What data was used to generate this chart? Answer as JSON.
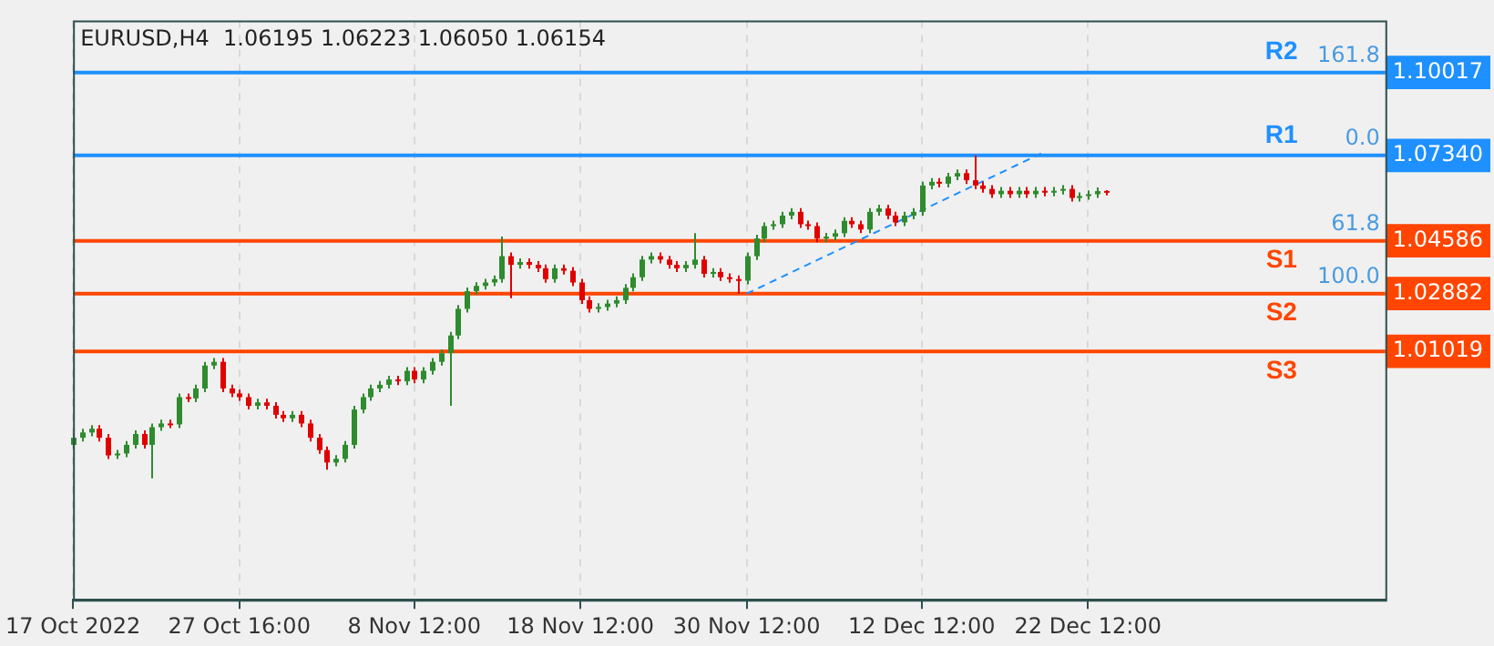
{
  "chart_data": {
    "type": "candlestick",
    "title": "EURUSD,H4  1.06195 1.06223 1.06050 1.06154",
    "categories": [
      "17 Oct 2022",
      null,
      null,
      null,
      null,
      null,
      null,
      null,
      null,
      null,
      null,
      null,
      null,
      null,
      null,
      null,
      null,
      null,
      null,
      "27 Oct 16:00",
      null,
      null,
      null,
      null,
      null,
      null,
      null,
      null,
      null,
      null,
      null,
      null,
      null,
      null,
      null,
      null,
      null,
      null,
      null,
      "8 Nov 12:00",
      null,
      null,
      null,
      null,
      null,
      null,
      null,
      null,
      null,
      null,
      null,
      null,
      null,
      null,
      null,
      null,
      null,
      null,
      "18 Nov 12:00",
      null,
      null,
      null,
      null,
      null,
      null,
      null,
      null,
      null,
      null,
      null,
      null,
      null,
      null,
      null,
      null,
      null,
      null,
      "30 Nov 12:00",
      null,
      null,
      null,
      null,
      null,
      null,
      null,
      null,
      null,
      null,
      null,
      null,
      null,
      null,
      null,
      null,
      null,
      null,
      null,
      "12 Dec 12:00",
      null,
      null,
      null,
      null,
      null,
      null,
      null,
      null,
      null,
      null,
      null,
      null,
      null,
      null,
      null,
      null,
      null,
      null,
      "22 Dec 12:00",
      null,
      null,
      null,
      null,
      null,
      null,
      null,
      null,
      null,
      null,
      null,
      null,
      null,
      null,
      null,
      null,
      null,
      null,
      null,
      null,
      null,
      null,
      null,
      null,
      null,
      null,
      null,
      null,
      null,
      null,
      null,
      null,
      null,
      null
    ],
    "ohlc": [
      [
        0.98,
        0.9835,
        0.9788,
        0.9823
      ],
      [
        0.9823,
        0.9852,
        0.9811,
        0.984
      ],
      [
        0.984,
        0.9864,
        0.9828,
        0.9852
      ],
      [
        0.9852,
        0.9864,
        0.9811,
        0.9823
      ],
      [
        0.9823,
        0.9835,
        0.9754,
        0.9766
      ],
      [
        0.9766,
        0.9784,
        0.9754,
        0.9772
      ],
      [
        0.9772,
        0.9812,
        0.976,
        0.98
      ],
      [
        0.98,
        0.9847,
        0.9788,
        0.9835
      ],
      [
        0.9835,
        0.9847,
        0.9788,
        0.98
      ],
      [
        0.98,
        0.9869,
        0.9692,
        0.9857
      ],
      [
        0.9857,
        0.9881,
        0.9845,
        0.9869
      ],
      [
        0.9869,
        0.9881,
        0.9854,
        0.9866
      ],
      [
        0.9866,
        0.9966,
        0.9854,
        0.9954
      ],
      [
        0.9954,
        0.9966,
        0.9938,
        0.995
      ],
      [
        0.995,
        0.9994,
        0.9938,
        0.9982
      ],
      [
        0.9982,
        1.0068,
        0.997,
        1.0056
      ],
      [
        1.0056,
        1.008,
        1.0044,
        1.0068
      ],
      [
        1.0068,
        1.008,
        0.997,
        0.9982
      ],
      [
        0.9982,
        0.9994,
        0.9954,
        0.9966
      ],
      [
        0.9966,
        0.9978,
        0.9942,
        0.9954
      ],
      [
        0.9954,
        0.9966,
        0.9914,
        0.9926
      ],
      [
        0.9926,
        0.9949,
        0.9914,
        0.9937
      ],
      [
        0.9937,
        0.9949,
        0.9914,
        0.9926
      ],
      [
        0.9926,
        0.9938,
        0.9885,
        0.9897
      ],
      [
        0.9897,
        0.9909,
        0.9874,
        0.9886
      ],
      [
        0.9886,
        0.9909,
        0.9874,
        0.9897
      ],
      [
        0.9897,
        0.9909,
        0.9857,
        0.9869
      ],
      [
        0.9869,
        0.9881,
        0.9811,
        0.9823
      ],
      [
        0.9823,
        0.9835,
        0.9771,
        0.9783
      ],
      [
        0.9783,
        0.9795,
        0.972,
        0.9743
      ],
      [
        0.9743,
        0.9767,
        0.9731,
        0.9755
      ],
      [
        0.9755,
        0.9812,
        0.9743,
        0.98
      ],
      [
        0.98,
        0.9926,
        0.9788,
        0.9914
      ],
      [
        0.9914,
        0.9966,
        0.9902,
        0.9954
      ],
      [
        0.9954,
        0.9994,
        0.9942,
        0.9982
      ],
      [
        0.9982,
        1.0006,
        0.997,
        0.9994
      ],
      [
        0.9994,
        1.0023,
        0.9982,
        1.0011
      ],
      [
        1.0011,
        1.0023,
        0.9993,
        1.0005
      ],
      [
        1.0005,
        1.0051,
        0.9993,
        1.0039
      ],
      [
        1.0039,
        1.0051,
        0.9999,
        1.0011
      ],
      [
        1.0011,
        1.0051,
        0.9999,
        1.0039
      ],
      [
        1.0039,
        1.008,
        1.0027,
        1.0068
      ],
      [
        1.0068,
        1.0108,
        1.0056,
        1.0096
      ],
      [
        1.0096,
        1.0165,
        0.9926,
        1.0153
      ],
      [
        1.0153,
        1.0251,
        1.0141,
        1.0239
      ],
      [
        1.0239,
        1.0308,
        1.0227,
        1.0296
      ],
      [
        1.0296,
        1.0325,
        1.0284,
        1.0313
      ],
      [
        1.0313,
        1.0336,
        1.0301,
        1.0324
      ],
      [
        1.0324,
        1.0347,
        1.0312,
        1.0335
      ],
      [
        1.0335,
        1.0472,
        1.0323,
        1.0409
      ],
      [
        1.0409,
        1.0421,
        1.0273,
        1.0381
      ],
      [
        1.0381,
        1.0402,
        1.0369,
        1.039
      ],
      [
        1.039,
        1.0402,
        1.0369,
        1.0381
      ],
      [
        1.0381,
        1.0393,
        1.0358,
        1.037
      ],
      [
        1.037,
        1.0382,
        1.0323,
        1.0335
      ],
      [
        1.0335,
        1.0382,
        1.0323,
        1.037
      ],
      [
        1.037,
        1.0382,
        1.035,
        1.0362
      ],
      [
        1.0362,
        1.0374,
        1.0312,
        1.0324
      ],
      [
        1.0324,
        1.0336,
        1.0255,
        1.0267
      ],
      [
        1.0267,
        1.0279,
        1.0227,
        1.0239
      ],
      [
        1.0239,
        1.0257,
        1.0227,
        1.0245
      ],
      [
        1.0245,
        1.0268,
        1.0233,
        1.0256
      ],
      [
        1.0256,
        1.0279,
        1.0244,
        1.0267
      ],
      [
        1.0267,
        1.0319,
        1.0255,
        1.0307
      ],
      [
        1.0307,
        1.0353,
        1.0295,
        1.0341
      ],
      [
        1.0341,
        1.041,
        1.0329,
        1.0398
      ],
      [
        1.0398,
        1.0421,
        1.0386,
        1.0409
      ],
      [
        1.0409,
        1.0421,
        1.0386,
        1.0398
      ],
      [
        1.0398,
        1.041,
        1.0369,
        1.0381
      ],
      [
        1.0381,
        1.0393,
        1.0358,
        1.037
      ],
      [
        1.037,
        1.0393,
        1.0358,
        1.0381
      ],
      [
        1.0381,
        1.0483,
        1.0369,
        1.0398
      ],
      [
        1.0398,
        1.041,
        1.034,
        1.0352
      ],
      [
        1.0352,
        1.037,
        1.034,
        1.0358
      ],
      [
        1.0358,
        1.037,
        1.0329,
        1.0341
      ],
      [
        1.0341,
        1.0353,
        1.0323,
        1.0335
      ],
      [
        1.0335,
        1.0347,
        1.0288,
        1.033
      ],
      [
        1.033,
        1.0421,
        1.0318,
        1.0409
      ],
      [
        1.0409,
        1.0478,
        1.0397,
        1.0466
      ],
      [
        1.0466,
        1.0518,
        1.0454,
        1.0506
      ],
      [
        1.0506,
        1.0524,
        1.0494,
        1.0512
      ],
      [
        1.0512,
        1.0552,
        1.05,
        1.054
      ],
      [
        1.054,
        1.0564,
        1.0528,
        1.0552
      ],
      [
        1.0552,
        1.0564,
        1.05,
        1.0512
      ],
      [
        1.0512,
        1.0524,
        1.0494,
        1.0506
      ],
      [
        1.0506,
        1.0518,
        1.0454,
        1.0466
      ],
      [
        1.0466,
        1.0484,
        1.0454,
        1.0472
      ],
      [
        1.0472,
        1.0495,
        1.046,
        1.0483
      ],
      [
        1.0483,
        1.0535,
        1.0471,
        1.0523
      ],
      [
        1.0523,
        1.0535,
        1.05,
        1.0512
      ],
      [
        1.0512,
        1.0524,
        1.0483,
        1.0495
      ],
      [
        1.0495,
        1.0564,
        1.0483,
        1.0552
      ],
      [
        1.0552,
        1.0575,
        1.054,
        1.0563
      ],
      [
        1.0563,
        1.0575,
        1.0528,
        1.054
      ],
      [
        1.054,
        1.0552,
        1.0506,
        1.0518
      ],
      [
        1.0518,
        1.0552,
        1.0506,
        1.054
      ],
      [
        1.054,
        1.0564,
        1.0528,
        1.0552
      ],
      [
        1.0552,
        1.0649,
        1.054,
        1.0637
      ],
      [
        1.0637,
        1.0661,
        1.0625,
        1.0649
      ],
      [
        1.0649,
        1.0661,
        1.0631,
        1.0643
      ],
      [
        1.0643,
        1.0678,
        1.0631,
        1.0666
      ],
      [
        1.0666,
        1.0689,
        1.0654,
        1.0677
      ],
      [
        1.0677,
        1.0689,
        1.0642,
        1.0654
      ],
      [
        1.0654,
        1.0734,
        1.0625,
        1.0637
      ],
      [
        1.0637,
        1.0649,
        1.0614,
        1.0626
      ],
      [
        1.0626,
        1.0638,
        1.0597,
        1.0609
      ],
      [
        1.0609,
        1.0632,
        1.0597,
        1.062
      ],
      [
        1.062,
        1.0632,
        1.0597,
        1.0609
      ],
      [
        1.0609,
        1.0632,
        1.0597,
        1.062
      ],
      [
        1.062,
        1.0632,
        1.0597,
        1.0609
      ],
      [
        1.0609,
        1.0632,
        1.0597,
        1.062
      ],
      [
        1.062,
        1.0632,
        1.0602,
        1.0614
      ],
      [
        1.0614,
        1.0632,
        1.0602,
        1.062
      ],
      [
        1.062,
        1.0638,
        1.0608,
        1.0626
      ],
      [
        1.0626,
        1.0638,
        1.0585,
        1.0597
      ],
      [
        1.0597,
        1.0615,
        1.0585,
        1.0603
      ],
      [
        1.0603,
        1.0621,
        1.0591,
        1.0609
      ],
      [
        1.0609,
        1.0631,
        1.0597,
        1.0619
      ],
      [
        1.06195,
        1.06223,
        1.0605,
        1.06154
      ],
      null,
      null,
      null,
      null,
      null,
      null,
      null,
      null,
      null,
      null,
      null,
      null,
      null,
      null,
      null,
      null,
      null,
      null,
      null,
      null,
      null,
      null,
      null,
      null,
      null,
      null,
      null,
      null,
      null,
      null,
      null,
      null
    ],
    "series": [
      {
        "type": "line",
        "color": "#1e90ff",
        "line_style": "dashed",
        "marker": "none",
        "values": [
          null,
          null,
          null,
          null,
          null,
          null,
          null,
          null,
          null,
          null,
          null,
          null,
          null,
          null,
          null,
          null,
          null,
          null,
          null,
          null,
          null,
          null,
          null,
          null,
          null,
          null,
          null,
          null,
          null,
          null,
          null,
          null,
          null,
          null,
          null,
          null,
          null,
          null,
          null,
          null,
          null,
          null,
          null,
          null,
          null,
          null,
          null,
          null,
          null,
          null,
          null,
          null,
          null,
          null,
          null,
          null,
          null,
          null,
          null,
          null,
          null,
          null,
          null,
          null,
          null,
          null,
          null,
          null,
          null,
          null,
          null,
          null,
          null,
          null,
          null,
          null,
          null,
          1.0288,
          null,
          null,
          null,
          null,
          null,
          null,
          null,
          null,
          null,
          null,
          null,
          null,
          null,
          null,
          null,
          null,
          null,
          null,
          null,
          null,
          null,
          null,
          null,
          null,
          null,
          null,
          null,
          null,
          null,
          null,
          null,
          null,
          null,
          1.0745,
          null,
          null,
          null,
          null,
          null,
          null,
          null,
          null,
          null,
          null,
          null,
          null,
          null,
          null,
          null,
          null,
          null,
          null,
          null,
          null,
          null,
          null,
          null,
          null,
          null,
          null,
          null,
          null,
          null,
          null,
          null,
          null,
          null,
          null,
          null,
          null,
          null,
          null,
          null
        ]
      }
    ],
    "ylim": [
      0.93,
      1.117
    ],
    "yticks": [
      {
        "value": 1.10017,
        "label": "1.10017"
      },
      {
        "value": 1.0734,
        "label": "1.07340"
      },
      {
        "value": 1.04586,
        "label": "1.04586"
      },
      {
        "value": 1.02882,
        "label": "1.02882"
      },
      {
        "value": 1.01019,
        "label": "1.01019"
      }
    ],
    "ref_lines": [
      {
        "axis": "y",
        "value": 1.10017,
        "label": "R2",
        "color": "#1e90ff"
      },
      {
        "axis": "y",
        "value": 1.0734,
        "label": "R1",
        "color": "#1e90ff"
      },
      {
        "axis": "y",
        "value": 1.04586,
        "label": "S1",
        "color": "#ff4500"
      },
      {
        "axis": "y",
        "value": 1.02882,
        "label": "S2",
        "color": "#ff4500"
      },
      {
        "axis": "y",
        "value": 1.01019,
        "label": "S3",
        "color": "#ff4500"
      }
    ],
    "annotations": [
      {
        "text": "161.8",
        "y": 1.10017
      },
      {
        "text": "0.0",
        "y": 1.0734
      },
      {
        "text": "61.8",
        "y": 1.04586
      },
      {
        "text": "100.0",
        "y": 1.02882
      }
    ],
    "grid": true
  }
}
